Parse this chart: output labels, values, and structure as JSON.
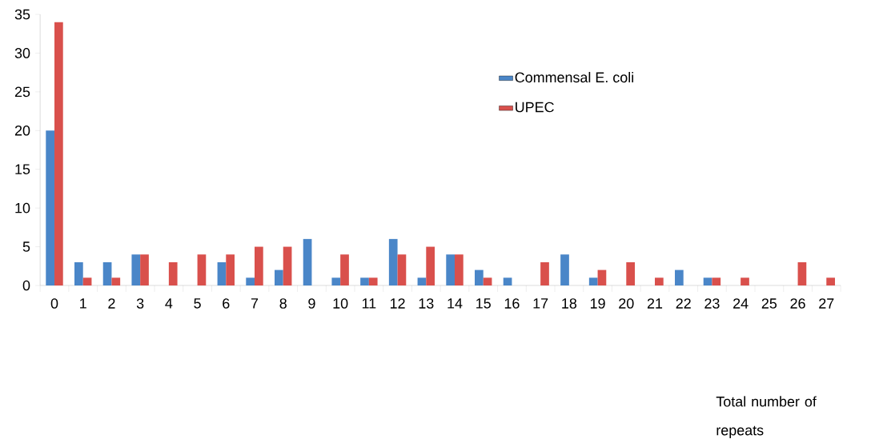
{
  "chart_data": {
    "type": "bar",
    "xlabel": "Total number of repeats",
    "categories": [
      "0",
      "1",
      "2",
      "3",
      "4",
      "5",
      "6",
      "7",
      "8",
      "9",
      "10",
      "11",
      "12",
      "13",
      "14",
      "15",
      "16",
      "17",
      "18",
      "19",
      "20",
      "21",
      "22",
      "23",
      "24",
      "25",
      "26",
      "27"
    ],
    "series": [
      {
        "name": "Commensal E. coli",
        "color": "#4a86c8",
        "values": [
          20,
          3,
          3,
          4,
          0,
          0,
          3,
          1,
          2,
          6,
          1,
          1,
          6,
          1,
          4,
          2,
          1,
          0,
          4,
          1,
          0,
          0,
          2,
          1,
          0,
          0,
          0,
          0
        ]
      },
      {
        "name": "UPEC",
        "color": "#d9504c",
        "values": [
          34,
          1,
          1,
          4,
          3,
          4,
          4,
          5,
          5,
          0,
          4,
          1,
          4,
          5,
          4,
          1,
          0,
          3,
          0,
          2,
          3,
          1,
          0,
          1,
          1,
          0,
          3,
          1
        ]
      }
    ],
    "ylim": [
      0,
      35
    ],
    "yticks": [
      0,
      5,
      10,
      15,
      20,
      25,
      30,
      35
    ],
    "grid": false,
    "legend": "top right"
  }
}
